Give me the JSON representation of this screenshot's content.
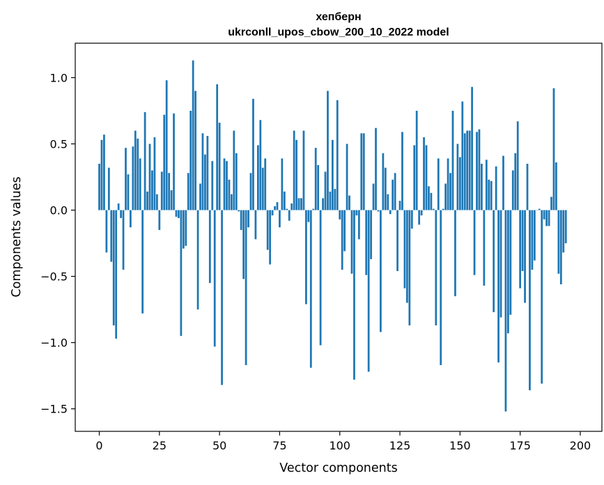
{
  "chart_data": {
    "type": "bar",
    "title_line1": "хепберн",
    "title_line2": "ukrconll_upos_cbow_200_10_2022 model",
    "xlabel": "Vector components",
    "ylabel": "Components values",
    "xlim": [
      -10,
      209
    ],
    "ylim": [
      -1.67,
      1.26
    ],
    "x_ticks": [
      0,
      25,
      50,
      75,
      100,
      125,
      150,
      175,
      200
    ],
    "y_ticks": [
      1.0,
      0.5,
      0.0,
      -0.5,
      -1.0,
      -1.5
    ],
    "y_tick_labels": [
      "1.0",
      "0.5",
      "0.0",
      "−0.5",
      "−1.0",
      "−1.5"
    ],
    "grid": false,
    "bar_color": "#1f77b4",
    "values": [
      0.35,
      0.53,
      0.57,
      -0.32,
      0.32,
      -0.39,
      -0.87,
      -0.97,
      0.05,
      -0.06,
      -0.45,
      0.47,
      0.27,
      -0.13,
      0.48,
      0.6,
      0.54,
      0.39,
      -0.78,
      0.74,
      0.14,
      0.5,
      0.3,
      0.55,
      0.12,
      -0.15,
      0.29,
      0.72,
      0.98,
      0.28,
      0.15,
      0.73,
      -0.05,
      -0.06,
      -0.95,
      -0.29,
      -0.27,
      0.28,
      0.75,
      1.13,
      0.9,
      -0.75,
      0.2,
      0.58,
      0.42,
      0.56,
      -0.55,
      0.37,
      -1.03,
      0.95,
      0.66,
      -1.32,
      0.39,
      0.37,
      0.23,
      0.12,
      0.6,
      0.43,
      -0.01,
      -0.15,
      -0.52,
      -1.17,
      -0.13,
      0.28,
      0.84,
      -0.22,
      0.49,
      0.68,
      0.32,
      0.39,
      -0.3,
      -0.41,
      -0.04,
      0.03,
      0.06,
      -0.13,
      0.39,
      0.14,
      0.01,
      -0.08,
      0.05,
      0.6,
      0.53,
      0.09,
      0.09,
      0.6,
      -0.71,
      -0.09,
      -1.19,
      0.01,
      0.47,
      0.34,
      -1.02,
      0.09,
      0.29,
      0.9,
      0.14,
      0.53,
      0.16,
      0.83,
      -0.07,
      -0.45,
      -0.31,
      0.5,
      0.11,
      -0.48,
      -1.28,
      -0.04,
      -0.22,
      0.58,
      0.58,
      -0.49,
      -1.22,
      -0.37,
      0.2,
      0.62,
      -0.01,
      -0.92,
      0.43,
      0.32,
      0.12,
      -0.03,
      0.23,
      0.28,
      -0.46,
      0.07,
      0.59,
      -0.59,
      -0.7,
      -0.87,
      -0.14,
      0.49,
      0.75,
      -0.11,
      -0.04,
      0.55,
      0.49,
      0.18,
      0.13,
      0.01,
      -0.87,
      0.39,
      -1.17,
      0.01,
      0.2,
      0.39,
      0.28,
      0.75,
      -0.65,
      0.5,
      0.4,
      0.82,
      0.58,
      0.6,
      0.6,
      0.93,
      -0.49,
      0.59,
      0.61,
      0.35,
      -0.57,
      0.38,
      0.23,
      0.22,
      -0.77,
      0.33,
      -1.15,
      -0.81,
      0.41,
      -1.52,
      -0.93,
      -0.79,
      0.3,
      0.43,
      0.67,
      -0.59,
      -0.46,
      -0.7,
      0.35,
      -1.36,
      -0.45,
      -0.38,
      0.0,
      0.01,
      -1.31,
      -0.07,
      -0.12,
      -0.12,
      0.1,
      0.92,
      0.36,
      -0.48,
      -0.56,
      -0.32,
      -0.25
    ]
  }
}
